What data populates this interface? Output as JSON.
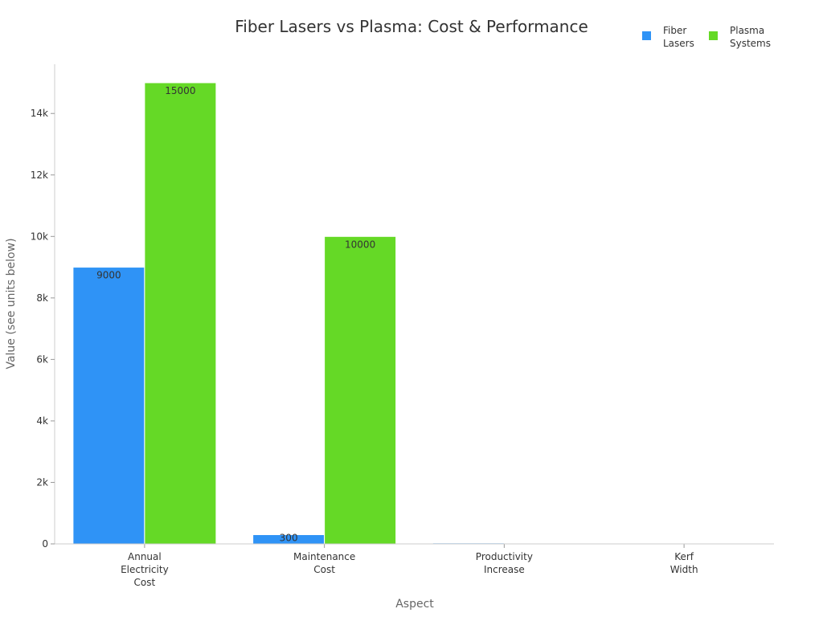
{
  "chart_data": {
    "type": "bar",
    "title": "Fiber Lasers vs Plasma: Cost & Performance",
    "xlabel": "Aspect",
    "ylabel": "Value (see units below)",
    "categories": [
      [
        "Annual",
        "Electricity",
        "Cost"
      ],
      [
        "Maintenance",
        "Cost"
      ],
      [
        "Productivity",
        "Increase"
      ],
      [
        "Kerf",
        "Width"
      ]
    ],
    "series": [
      {
        "name": [
          "Fiber",
          "Lasers"
        ],
        "color": "#2f93f6",
        "values": [
          9000,
          300,
          30,
          0.1
        ],
        "labels": [
          "9000",
          "300",
          "",
          ""
        ]
      },
      {
        "name": [
          "Plasma",
          "Systems"
        ],
        "color": "#65d926",
        "values": [
          15000,
          10000,
          0,
          0
        ],
        "labels": [
          "15000",
          "10000",
          "",
          ""
        ]
      }
    ],
    "ylim": [
      0,
      15600
    ],
    "yticks": [
      0,
      2000,
      4000,
      6000,
      8000,
      10000,
      12000,
      14000
    ],
    "ytick_labels": [
      "0",
      "2k",
      "4k",
      "6k",
      "8k",
      "10k",
      "12k",
      "14k"
    ],
    "legend_position": "top-right",
    "grid": false
  }
}
